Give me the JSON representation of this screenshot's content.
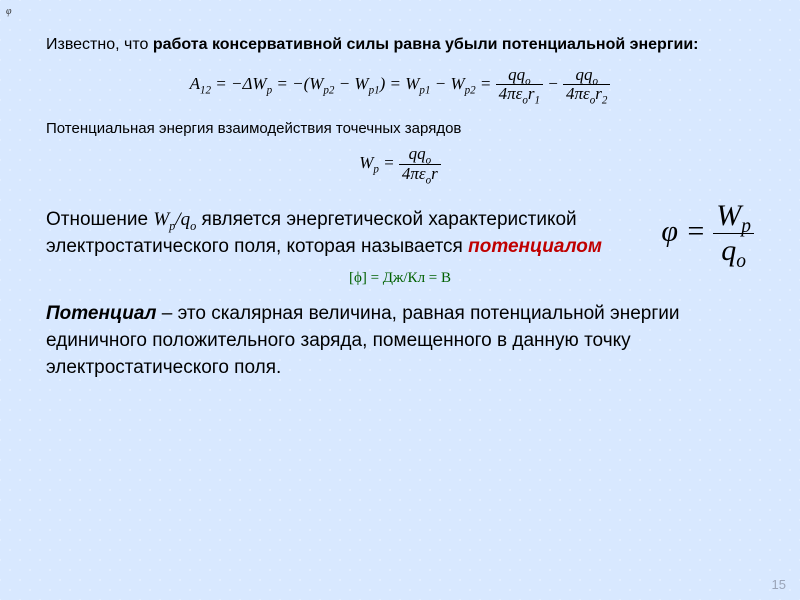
{
  "corner_symbol": "φ",
  "p1_a": "Известно, что ",
  "p1_b": "работа консервативной силы равна убыли потенциальной энергии:",
  "eq_work": {
    "lhs": "A",
    "lhs_sub": "12",
    "mid1": " = −ΔW",
    "mid1_sub": "p",
    "mid2": " = −(W",
    "mid2_sub": "p2",
    "mid3": " − W",
    "mid3_sub": "p1",
    "mid4": ") = W",
    "mid4_sub": "p1",
    "mid5": " − W",
    "mid5_sub": "p2",
    "eq": " = ",
    "minus": " − ",
    "num1": "qq",
    "num1_sub": "o",
    "den1_a": "4πε",
    "den1_sub": "o",
    "den1_b": "r",
    "den1_b_sub": "1",
    "num2": "qq",
    "num2_sub": "o",
    "den2_a": "4πε",
    "den2_sub": "o",
    "den2_b": "r",
    "den2_b_sub": "2"
  },
  "p2": "Потенциальная энергия взаимодействия точечных зарядов",
  "eq_wp": {
    "lhs": "W",
    "lhs_sub": "p",
    "eq": " = ",
    "num": "qq",
    "num_sub": "o",
    "den_a": "4πε",
    "den_sub": "o",
    "den_b": "r"
  },
  "ratio_text_a": "Отношение  ",
  "ratio_sym": "W",
  "ratio_sym_sub": "p",
  "ratio_slash": "/q",
  "ratio_slash_sub": "o",
  "ratio_text_b": " является энергетической характеристикой электростатического поля, которая называется ",
  "ratio_em": "потенциалом",
  "units": "[ϕ] = Дж/Кл = В",
  "eq_phi": {
    "lhs": "φ = ",
    "num": "W",
    "num_sub": "p",
    "den": "q",
    "den_sub": "o"
  },
  "def_term": "Потенциал",
  "def_rest": " – это скалярная величина, равная потенциальной энергии единичного положительного заряда, помещенного в данную точку электростатического поля.",
  "page": "15"
}
